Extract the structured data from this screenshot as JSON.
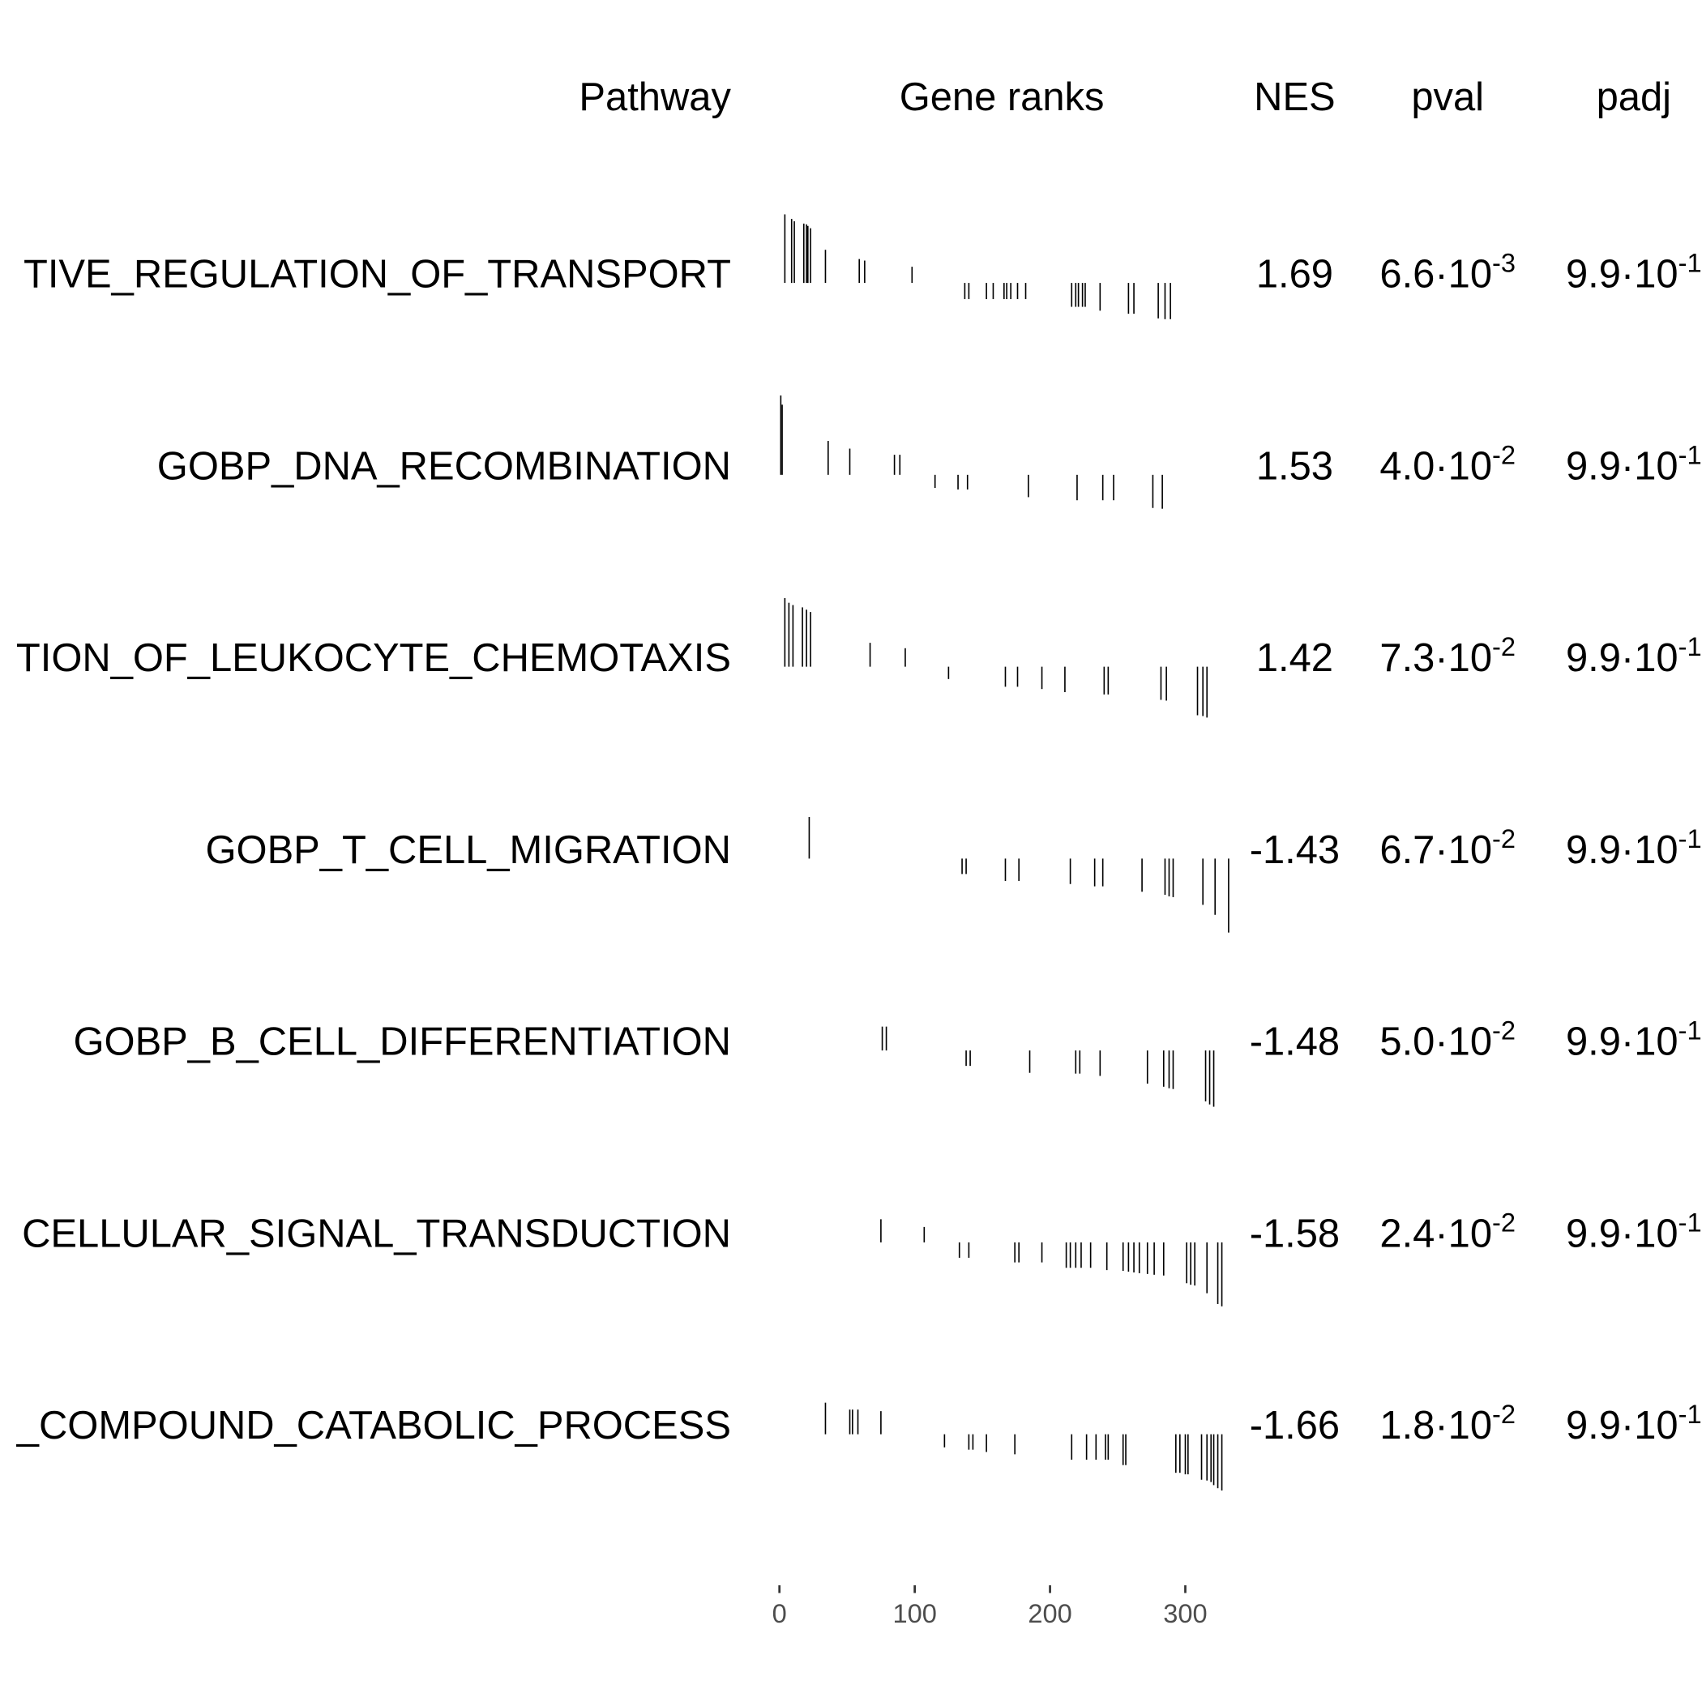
{
  "chart_data": {
    "type": "gsea_table",
    "columns": [
      "Pathway",
      "Gene ranks",
      "NES",
      "pval",
      "padj"
    ],
    "xlim": [
      0,
      332
    ],
    "xticks": [
      0,
      100,
      200,
      300
    ],
    "rows": [
      {
        "pathway": "TIVE_REGULATION_OF_TRANSPORT",
        "ranks": [
          4,
          9,
          11,
          18,
          20,
          21,
          23,
          34,
          59,
          63,
          98,
          137,
          140,
          153,
          158,
          166,
          168,
          171,
          176,
          182,
          216,
          219,
          221,
          224,
          226,
          237,
          258,
          262,
          280,
          285,
          289
        ],
        "stats": [
          0.89,
          0.83,
          0.8,
          0.77,
          0.76,
          0.74,
          0.71,
          0.43,
          0.31,
          0.29,
          0.21,
          -0.21,
          -0.21,
          -0.21,
          -0.21,
          -0.21,
          -0.21,
          -0.21,
          -0.21,
          -0.21,
          -0.31,
          -0.31,
          -0.31,
          -0.31,
          -0.31,
          -0.36,
          -0.4,
          -0.4,
          -0.46,
          -0.47,
          -0.47
        ],
        "nes": 1.69,
        "pval": {
          "base": "6.6·10",
          "exponent": "-3"
        },
        "padj": {
          "base": "9.9·10",
          "exponent": "-1"
        }
      },
      {
        "pathway": "GOBP_DNA_RECOMBINATION",
        "ranks": [
          1,
          2,
          36,
          52,
          85,
          89,
          115,
          132,
          139,
          184,
          220,
          239,
          247,
          276,
          283
        ],
        "stats": [
          1.03,
          0.91,
          0.44,
          0.34,
          0.26,
          0.26,
          -0.17,
          -0.19,
          -0.19,
          -0.29,
          -0.33,
          -0.33,
          -0.33,
          -0.43,
          -0.44
        ],
        "nes": 1.53,
        "pval": {
          "base": "4.0·10",
          "exponent": "-2"
        },
        "padj": {
          "base": "9.9·10",
          "exponent": "-1"
        }
      },
      {
        "pathway": "TION_OF_LEUKOCYTE_CHEMOTAXIS",
        "ranks": [
          4,
          7,
          10,
          17,
          20,
          23,
          67,
          93,
          125,
          167,
          176,
          194,
          211,
          240,
          243,
          282,
          286,
          309,
          313,
          316
        ],
        "stats": [
          0.89,
          0.83,
          0.8,
          0.77,
          0.74,
          0.71,
          0.31,
          0.24,
          -0.16,
          -0.26,
          -0.26,
          -0.29,
          -0.33,
          -0.36,
          -0.36,
          -0.43,
          -0.44,
          -0.63,
          -0.64,
          -0.66
        ],
        "nes": 1.42,
        "pval": {
          "base": "7.3·10",
          "exponent": "-2"
        },
        "padj": {
          "base": "9.9·10",
          "exponent": "-1"
        }
      },
      {
        "pathway": "GOBP_T_CELL_MIGRATION",
        "ranks": [
          22,
          135,
          138,
          167,
          177,
          215,
          233,
          239,
          268,
          285,
          288,
          291,
          313,
          322,
          332
        ],
        "stats": [
          0.54,
          -0.2,
          -0.2,
          -0.29,
          -0.29,
          -0.33,
          -0.36,
          -0.36,
          -0.43,
          -0.47,
          -0.49,
          -0.5,
          -0.6,
          -0.73,
          -0.96
        ],
        "nes": -1.43,
        "pval": {
          "base": "6.7·10",
          "exponent": "-2"
        },
        "padj": {
          "base": "9.9·10",
          "exponent": "-1"
        }
      },
      {
        "pathway": "GOBP_B_CELL_DIFFERENTIATION",
        "ranks": [
          76,
          79,
          138,
          141,
          185,
          219,
          222,
          237,
          272,
          284,
          288,
          291,
          315,
          318,
          321
        ],
        "stats": [
          0.31,
          0.31,
          -0.2,
          -0.2,
          -0.29,
          -0.3,
          -0.3,
          -0.33,
          -0.43,
          -0.47,
          -0.49,
          -0.5,
          -0.66,
          -0.7,
          -0.73
        ],
        "nes": -1.48,
        "pval": {
          "base": "5.0·10",
          "exponent": "-2"
        },
        "padj": {
          "base": "9.9·10",
          "exponent": "-1"
        }
      },
      {
        "pathway": "CELLULAR_SIGNAL_TRANSDUCTION",
        "ranks": [
          75,
          107,
          133,
          140,
          174,
          177,
          194,
          212,
          215,
          219,
          223,
          230,
          242,
          254,
          258,
          262,
          266,
          272,
          277,
          284,
          301,
          304,
          307,
          316,
          324,
          327
        ],
        "stats": [
          0.3,
          0.2,
          -0.2,
          -0.2,
          -0.26,
          -0.26,
          -0.26,
          -0.33,
          -0.33,
          -0.33,
          -0.33,
          -0.33,
          -0.36,
          -0.37,
          -0.38,
          -0.39,
          -0.4,
          -0.41,
          -0.42,
          -0.43,
          -0.53,
          -0.55,
          -0.56,
          -0.66,
          -0.8,
          -0.83
        ],
        "nes": -1.58,
        "pval": {
          "base": "2.4·10",
          "exponent": "-2"
        },
        "padj": {
          "base": "9.9·10",
          "exponent": "-1"
        }
      },
      {
        "pathway": "_COMPOUND_CATABOLIC_PROCESS",
        "ranks": [
          34,
          52,
          54,
          58,
          75,
          122,
          140,
          143,
          153,
          174,
          216,
          227,
          234,
          241,
          243,
          254,
          256,
          293,
          296,
          300,
          302,
          312,
          316,
          319,
          321,
          324,
          327
        ],
        "stats": [
          0.41,
          0.32,
          0.32,
          0.32,
          0.3,
          -0.17,
          -0.2,
          -0.2,
          -0.23,
          -0.26,
          -0.33,
          -0.33,
          -0.33,
          -0.33,
          -0.33,
          -0.4,
          -0.4,
          -0.5,
          -0.5,
          -0.52,
          -0.52,
          -0.59,
          -0.6,
          -0.62,
          -0.66,
          -0.7,
          -0.73
        ],
        "nes": -1.66,
        "pval": {
          "base": "1.8·10",
          "exponent": "-2"
        },
        "padj": {
          "base": "9.9·10",
          "exponent": "-1"
        }
      }
    ]
  }
}
